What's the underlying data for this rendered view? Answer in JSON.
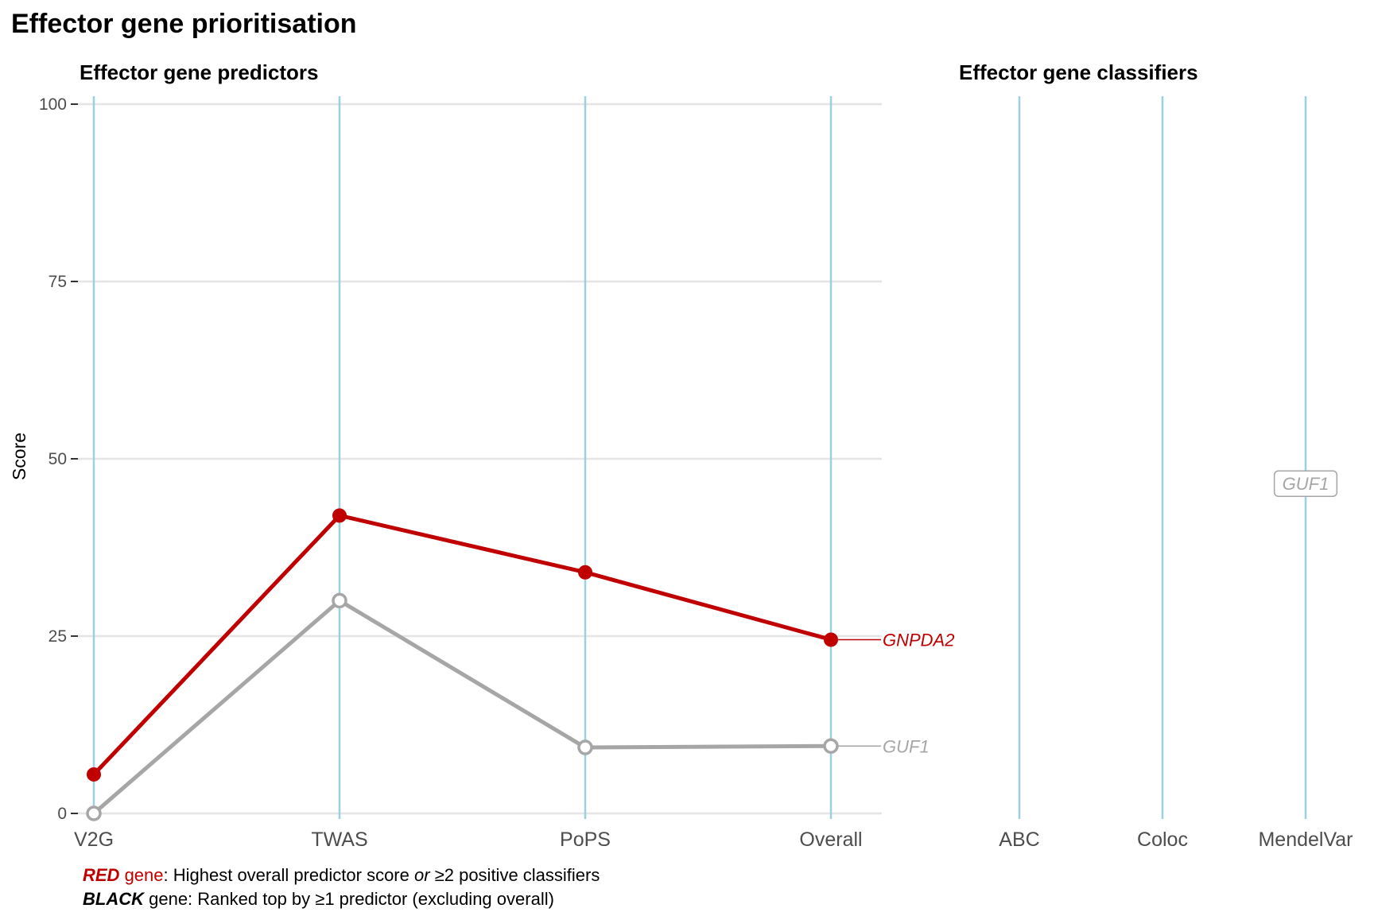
{
  "title": "Effector gene prioritisation",
  "colors": {
    "red": "#c00000",
    "grey": "#a6a6a6",
    "axis_line": "#9ccfe0",
    "grid": "#e5e5e5"
  },
  "chart_data": [
    {
      "type": "line",
      "title": "Effector gene predictors",
      "ylabel": "Score",
      "xlabel": "",
      "ylim": [
        0,
        100
      ],
      "yticks": [
        0,
        25,
        50,
        75,
        100
      ],
      "categories": [
        "V2G",
        "TWAS",
        "PoPS",
        "Overall"
      ],
      "series": [
        {
          "name": "GNPDA2",
          "color": "#c00000",
          "filled": true,
          "values": [
            5.5,
            42,
            34,
            24.5
          ]
        },
        {
          "name": "GUF1",
          "color": "#a6a6a6",
          "filled": false,
          "values": [
            0,
            30,
            9.3,
            9.5
          ]
        }
      ],
      "grid": true
    },
    {
      "type": "scatter",
      "title": "Effector gene classifiers",
      "categories": [
        "ABC",
        "Coloc",
        "MendelVar"
      ],
      "labels": [
        {
          "text": "GUF1",
          "category": "MendelVar",
          "y": 46.5,
          "color": "#a6a6a6"
        }
      ],
      "grid": false
    }
  ],
  "caption": {
    "line1": {
      "red_word": "RED",
      "gene_word": " gene",
      "rest_before": ": Highest overall predictor score ",
      "or_word": "or",
      "rest_after": " ≥2 positive classifiers"
    },
    "line2": {
      "black_word": "BLACK",
      "rest": " gene: Ranked top by ≥1 predictor (excluding overall)"
    }
  }
}
